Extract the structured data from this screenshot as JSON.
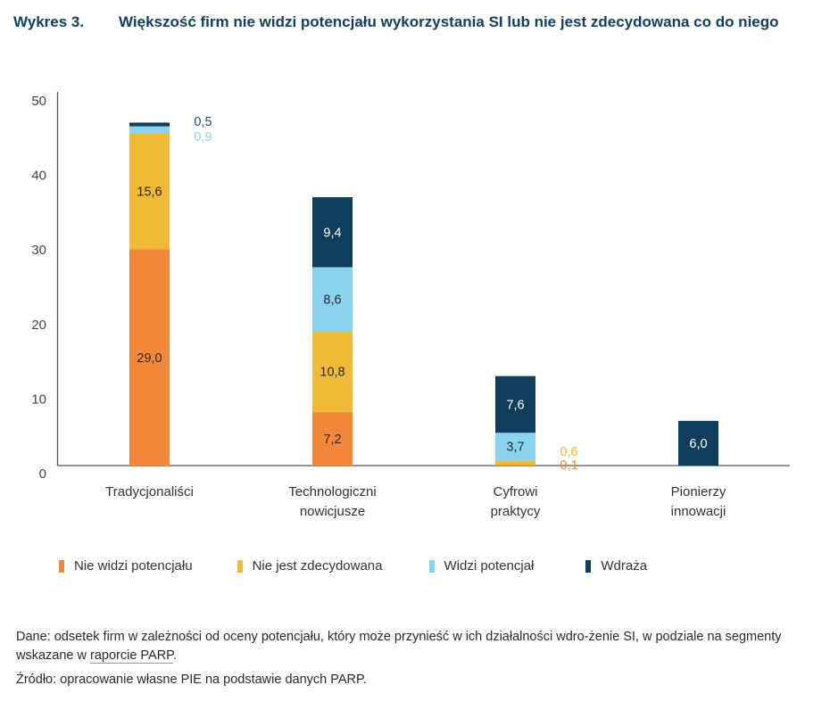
{
  "title": {
    "number": "Wykres 3.",
    "text": "Większość firm nie widzi potencjału wykorzystania SI lub nie jest zdecydowana co do niego"
  },
  "chart_data": {
    "type": "bar",
    "stacked": true,
    "title": "Większość firm nie widzi potencjału wykorzystania SI lub nie jest zdecydowana co do niego",
    "xlabel": "",
    "ylabel": "",
    "ylim": [
      0,
      50
    ],
    "yticks": [
      0,
      10,
      20,
      30,
      40,
      50
    ],
    "ytick_labels": [
      "0",
      "10",
      "20",
      "30",
      "40",
      "50"
    ],
    "grid": false,
    "legend_position": "bottom",
    "categories": [
      [
        "Tradycjonaliści"
      ],
      [
        "Technologiczni",
        "nowicjusze"
      ],
      [
        "Cyfrowi",
        "praktycy"
      ],
      [
        "Pionierzy",
        "innowacji"
      ]
    ],
    "series": [
      {
        "name": "Nie widzi potencjału",
        "color": "#f4873a",
        "values": [
          29.0,
          7.2,
          0.1,
          0.0
        ],
        "labels": [
          "29,0",
          "7,2",
          "0,1",
          ""
        ]
      },
      {
        "name": "Nie jest zdecydowana",
        "color": "#f0b936",
        "values": [
          15.6,
          10.8,
          0.6,
          0.0
        ],
        "labels": [
          "15,6",
          "10,8",
          "0,6",
          ""
        ]
      },
      {
        "name": "Widzi potencjał",
        "color": "#88d3ef",
        "values": [
          0.9,
          8.6,
          3.7,
          0.0
        ],
        "labels": [
          "0,9",
          "8,6",
          "3,7",
          ""
        ]
      },
      {
        "name": "Wdraża",
        "color": "#0d3f5c",
        "values": [
          0.5,
          9.4,
          7.6,
          6.0
        ],
        "labels": [
          "0,5",
          "9,4",
          "7,6",
          "6,0"
        ]
      }
    ]
  },
  "notes": {
    "data_prefix": "Dane: odsetek firm w zależności od oceny potencjału, który może przynieść w ich działalności wdro-żenie SI, w podziale na segmenty wskazane w ",
    "data_link": "raporcie PARP",
    "data_suffix": ".",
    "source": "Źródło: opracowanie własne PIE na podstawie danych PARP."
  }
}
